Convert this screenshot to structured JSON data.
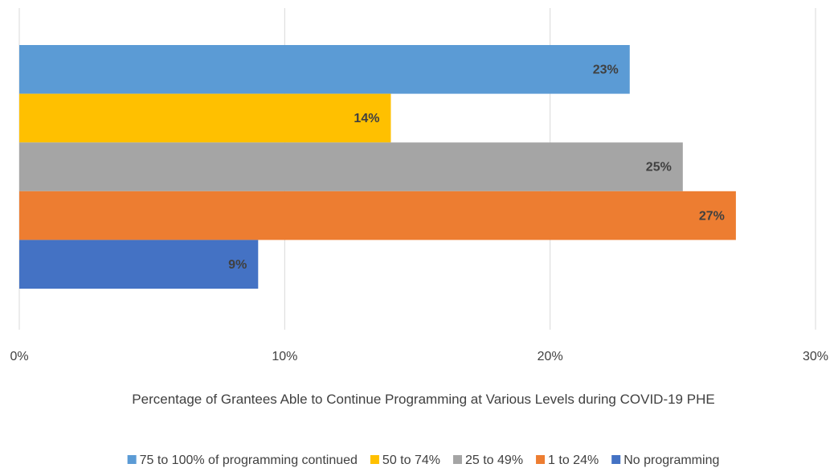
{
  "chart_data": {
    "type": "bar",
    "orientation": "horizontal",
    "xlabel": "Percentage of Grantees Able to Continue Programming at Various Levels during COVID-19 PHE",
    "xlim": [
      0,
      30
    ],
    "xticks": [
      {
        "value": 0,
        "label": "0%"
      },
      {
        "value": 10,
        "label": "10%"
      },
      {
        "value": 20,
        "label": "20%"
      },
      {
        "value": 30,
        "label": "30%"
      }
    ],
    "grid": true,
    "legend": "bottom",
    "series": [
      {
        "name": "75 to 100% of programming continued",
        "color": "#5b9bd5",
        "values": [
          23
        ],
        "value_labels": [
          "23%"
        ]
      },
      {
        "name": "50 to 74%",
        "color": "#ffc000",
        "values": [
          14
        ],
        "value_labels": [
          "14%"
        ]
      },
      {
        "name": "25 to 49%",
        "color": "#a5a5a5",
        "values": [
          25
        ],
        "value_labels": [
          "25%"
        ]
      },
      {
        "name": "1 to 24%",
        "color": "#ed7d31",
        "values": [
          27
        ],
        "value_labels": [
          "27%"
        ]
      },
      {
        "name": "No programming",
        "color": "#4472c4",
        "values": [
          9
        ],
        "value_labels": [
          "9%"
        ]
      }
    ]
  }
}
